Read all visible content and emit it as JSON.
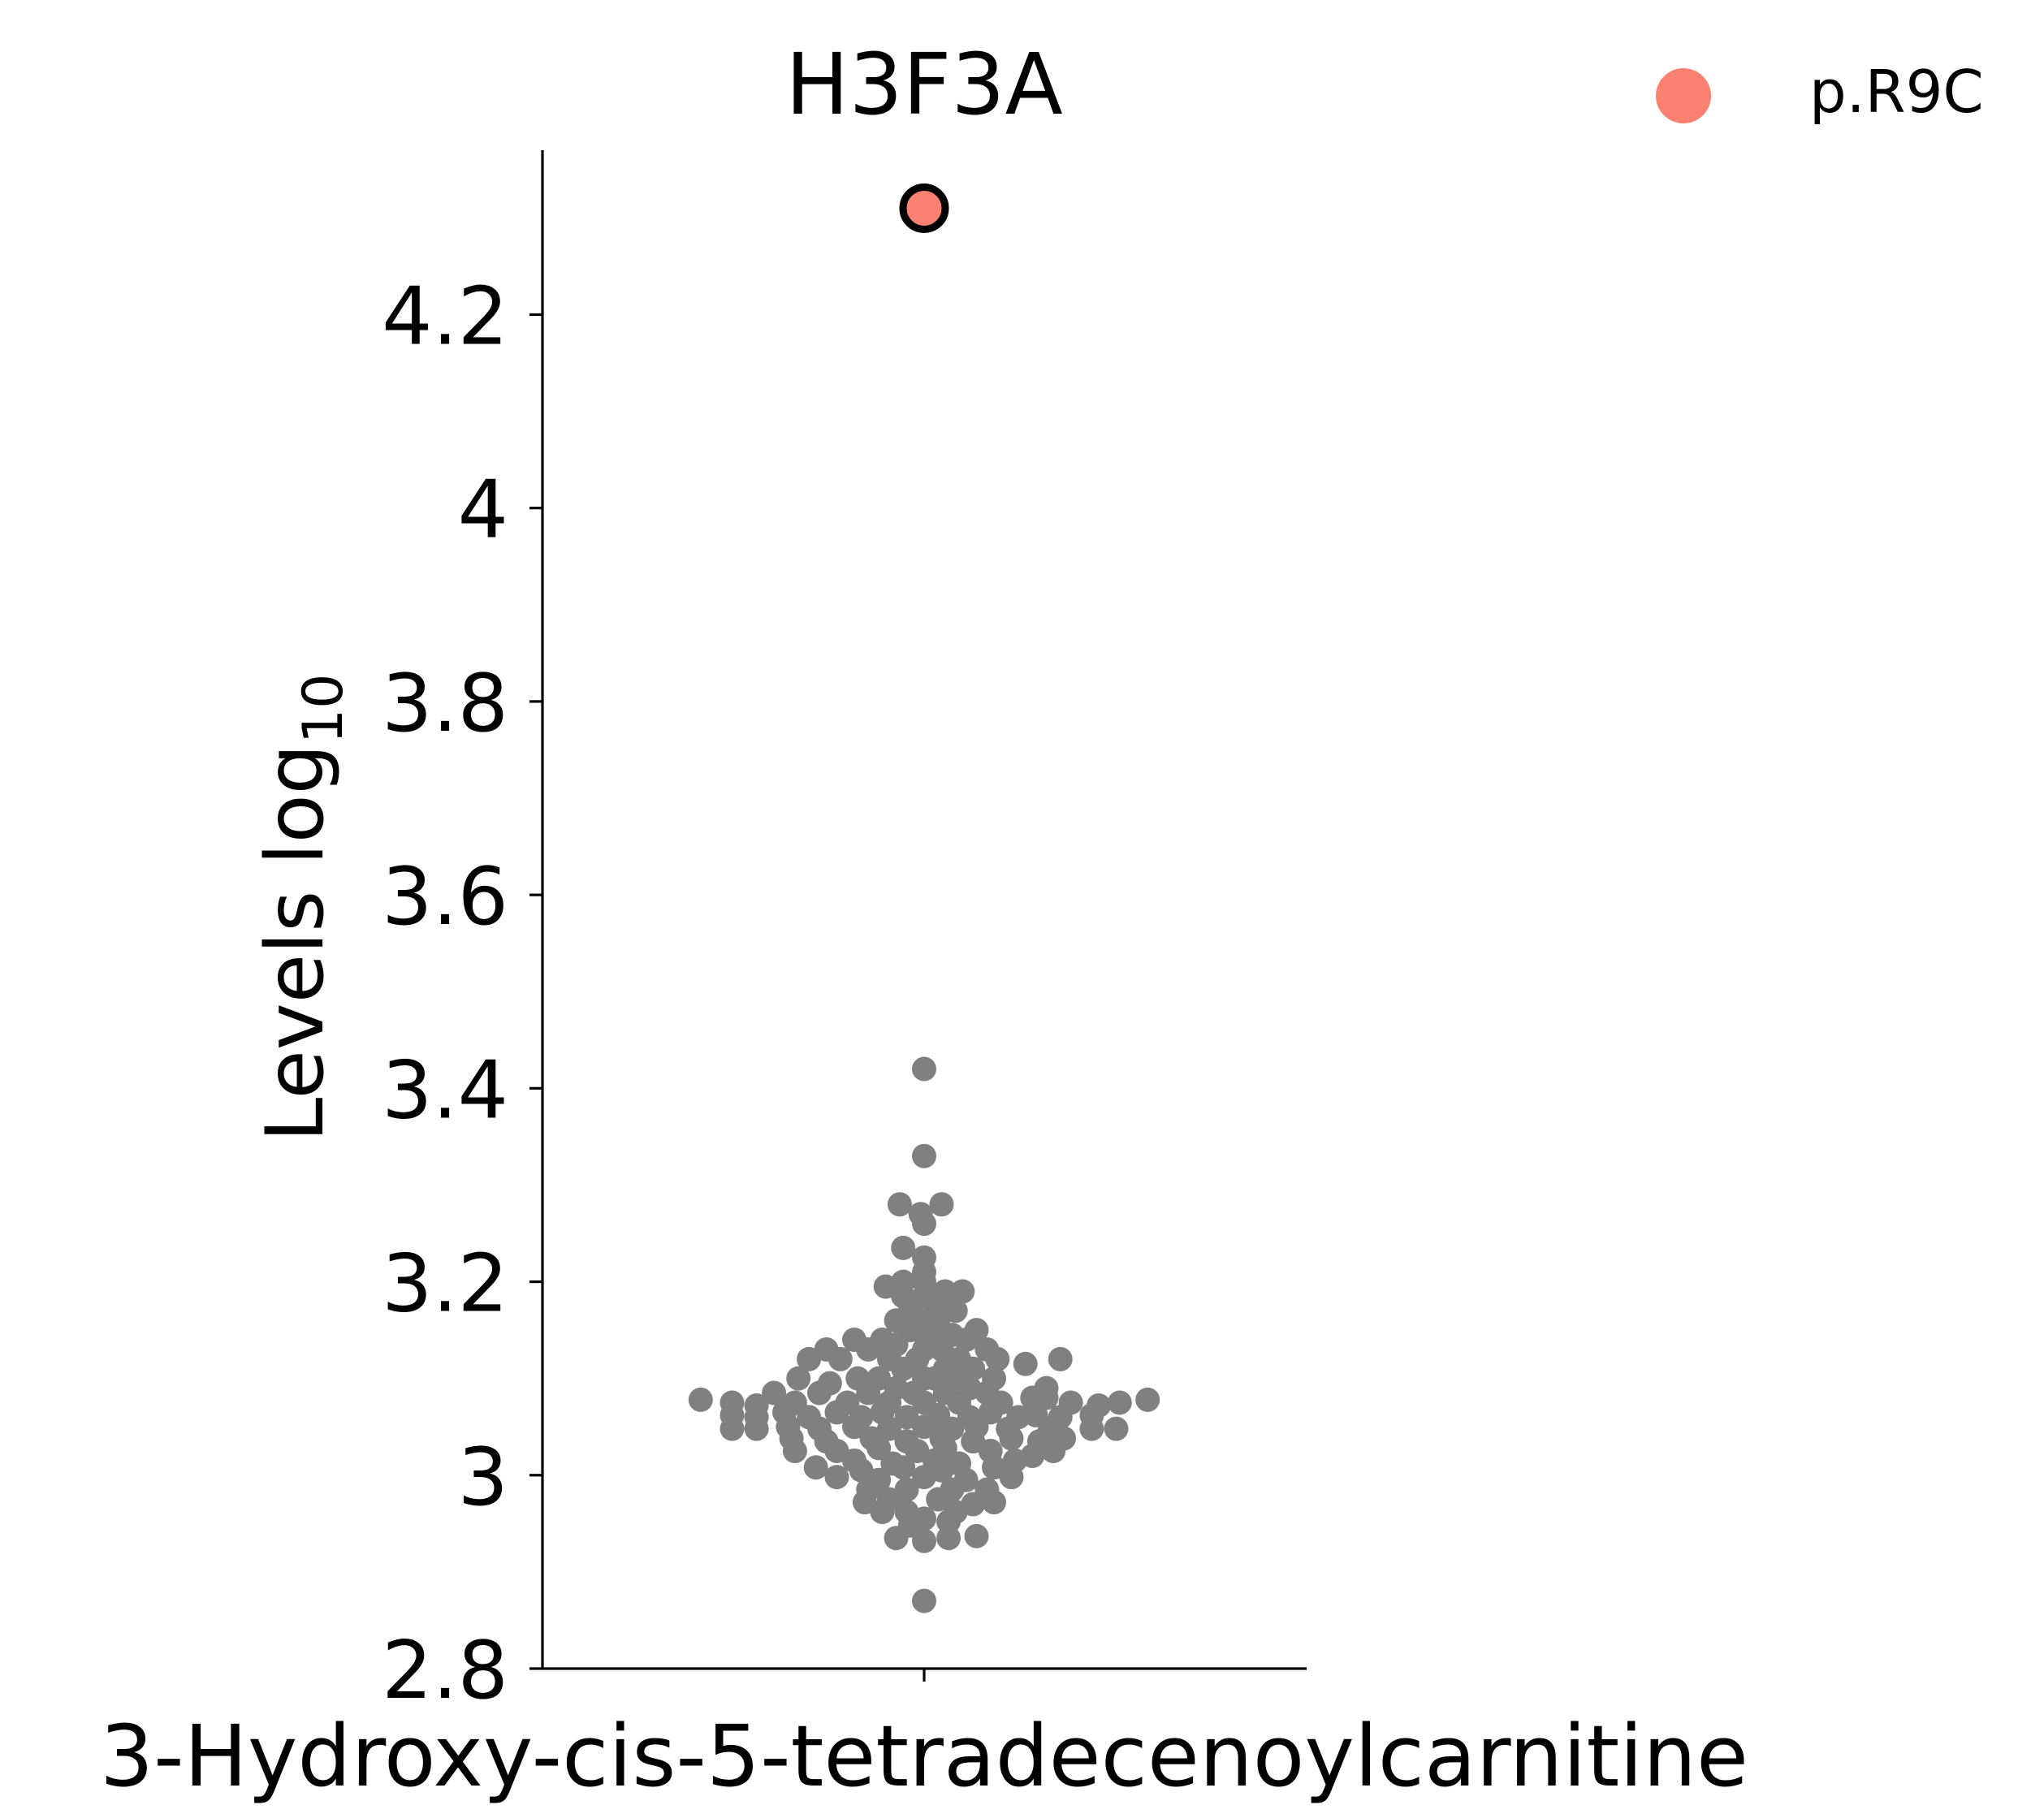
{
  "chart_data": {
    "type": "scatter",
    "title": "H3F3A",
    "xlabel": "",
    "ylabel": "Levels log",
    "ylabel_subscript": "10",
    "categories": [
      "3-Hydroxy-cis-5-tetradecenoylcarnitine"
    ],
    "yticks": [
      "2.8",
      "3",
      "3.2",
      "3.4",
      "3.6",
      "3.8",
      "4",
      "4.2"
    ],
    "ylim": [
      2.8,
      4.37
    ],
    "grid": false,
    "legend_position": "top-right",
    "legend": [
      {
        "label": "p.R9C",
        "color": "#fa8072"
      }
    ],
    "colors": {
      "background_points": "#808080",
      "highlight": "#fa8072",
      "highlight_edge": "#000000"
    },
    "series": [
      {
        "name": "p.R9C",
        "color": "#fa8072",
        "points": [
          {
            "x": 0,
            "y": 4.31
          }
        ]
      },
      {
        "color": "#808080",
        "points": [
          {
            "x": 0,
            "y": 3.42
          },
          {
            "x": 0,
            "y": 3.33
          },
          {
            "x": -0.07,
            "y": 3.28
          },
          {
            "x": -0.01,
            "y": 3.27
          },
          {
            "x": 0.05,
            "y": 3.28
          },
          {
            "x": 0,
            "y": 3.26
          },
          {
            "x": -0.06,
            "y": 3.235
          },
          {
            "x": 0,
            "y": 3.225
          },
          {
            "x": 0,
            "y": 3.21
          },
          {
            "x": -0.06,
            "y": 3.2
          },
          {
            "x": 0,
            "y": 3.2
          },
          {
            "x": -0.11,
            "y": 3.195
          },
          {
            "x": 0.11,
            "y": 3.19
          },
          {
            "x": 0.06,
            "y": 3.19
          },
          {
            "x": 0,
            "y": 3.185
          },
          {
            "x": -0.06,
            "y": 3.185
          },
          {
            "x": 0.03,
            "y": 3.18
          },
          {
            "x": 0.09,
            "y": 3.17
          },
          {
            "x": -0.04,
            "y": 3.17
          },
          {
            "x": 0,
            "y": 3.16
          },
          {
            "x": 0.04,
            "y": 3.16
          },
          {
            "x": -0.08,
            "y": 3.16
          },
          {
            "x": 0.15,
            "y": 3.15
          },
          {
            "x": -0.2,
            "y": 3.14
          },
          {
            "x": -0.12,
            "y": 3.14
          },
          {
            "x": -0.04,
            "y": 3.15
          },
          {
            "x": 0.02,
            "y": 3.14
          },
          {
            "x": 0.08,
            "y": 3.145
          },
          {
            "x": 0.12,
            "y": 3.14
          },
          {
            "x": -0.28,
            "y": 3.13
          },
          {
            "x": -0.16,
            "y": 3.13
          },
          {
            "x": -0.08,
            "y": 3.135
          },
          {
            "x": 0,
            "y": 3.13
          },
          {
            "x": 0.05,
            "y": 3.13
          },
          {
            "x": 0.18,
            "y": 3.13
          },
          {
            "x": -0.33,
            "y": 3.12
          },
          {
            "x": -0.24,
            "y": 3.12
          },
          {
            "x": -0.1,
            "y": 3.12
          },
          {
            "x": -0.02,
            "y": 3.12
          },
          {
            "x": 0.1,
            "y": 3.12
          },
          {
            "x": 0.21,
            "y": 3.12
          },
          {
            "x": 0.29,
            "y": 3.115
          },
          {
            "x": 0.39,
            "y": 3.12
          },
          {
            "x": -0.06,
            "y": 3.11
          },
          {
            "x": 0.06,
            "y": 3.11
          },
          {
            "x": 0.14,
            "y": 3.11
          },
          {
            "x": -0.36,
            "y": 3.1
          },
          {
            "x": -0.19,
            "y": 3.1
          },
          {
            "x": -0.13,
            "y": 3.1
          },
          {
            "x": 0,
            "y": 3.1
          },
          {
            "x": 0.03,
            "y": 3.1
          },
          {
            "x": 0.09,
            "y": 3.1
          },
          {
            "x": 0.2,
            "y": 3.1
          },
          {
            "x": -0.27,
            "y": 3.095
          },
          {
            "x": -0.08,
            "y": 3.09
          },
          {
            "x": 0.13,
            "y": 3.09
          },
          {
            "x": 0.35,
            "y": 3.09
          },
          {
            "x": -0.43,
            "y": 3.085
          },
          {
            "x": -0.3,
            "y": 3.085
          },
          {
            "x": -0.16,
            "y": 3.085
          },
          {
            "x": -0.03,
            "y": 3.085
          },
          {
            "x": 0.06,
            "y": 3.085
          },
          {
            "x": 0.18,
            "y": 3.085
          },
          {
            "x": 0.31,
            "y": 3.08
          },
          {
            "x": 0.35,
            "y": 3.08
          },
          {
            "x": -0.64,
            "y": 3.078
          },
          {
            "x": -0.55,
            "y": 3.075
          },
          {
            "x": -0.48,
            "y": 3.072
          },
          {
            "x": -0.37,
            "y": 3.075
          },
          {
            "x": -0.22,
            "y": 3.075
          },
          {
            "x": -0.1,
            "y": 3.075
          },
          {
            "x": 0,
            "y": 3.075
          },
          {
            "x": 0.1,
            "y": 3.075
          },
          {
            "x": 0.22,
            "y": 3.075
          },
          {
            "x": 0.42,
            "y": 3.075
          },
          {
            "x": 0.5,
            "y": 3.072
          },
          {
            "x": 0.56,
            "y": 3.075
          },
          {
            "x": 0.64,
            "y": 3.078
          },
          {
            "x": -0.55,
            "y": 3.062
          },
          {
            "x": -0.48,
            "y": 3.06
          },
          {
            "x": -0.4,
            "y": 3.065
          },
          {
            "x": -0.33,
            "y": 3.06
          },
          {
            "x": -0.25,
            "y": 3.065
          },
          {
            "x": -0.18,
            "y": 3.06
          },
          {
            "x": -0.12,
            "y": 3.065
          },
          {
            "x": -0.05,
            "y": 3.06
          },
          {
            "x": 0.04,
            "y": 3.062
          },
          {
            "x": 0.13,
            "y": 3.06
          },
          {
            "x": 0.19,
            "y": 3.065
          },
          {
            "x": 0.27,
            "y": 3.06
          },
          {
            "x": 0.32,
            "y": 3.062
          },
          {
            "x": 0.39,
            "y": 3.06
          },
          {
            "x": 0.48,
            "y": 3.062
          },
          {
            "x": -0.55,
            "y": 3.048
          },
          {
            "x": -0.48,
            "y": 3.048
          },
          {
            "x": -0.39,
            "y": 3.05
          },
          {
            "x": -0.3,
            "y": 3.048
          },
          {
            "x": -0.2,
            "y": 3.05
          },
          {
            "x": -0.1,
            "y": 3.048
          },
          {
            "x": 0,
            "y": 3.05
          },
          {
            "x": 0.08,
            "y": 3.048
          },
          {
            "x": 0.15,
            "y": 3.05
          },
          {
            "x": 0.24,
            "y": 3.048
          },
          {
            "x": 0.36,
            "y": 3.048
          },
          {
            "x": 0.48,
            "y": 3.048
          },
          {
            "x": 0.55,
            "y": 3.048
          },
          {
            "x": -0.38,
            "y": 3.038
          },
          {
            "x": -0.28,
            "y": 3.035
          },
          {
            "x": -0.15,
            "y": 3.038
          },
          {
            "x": -0.05,
            "y": 3.035
          },
          {
            "x": 0.05,
            "y": 3.038
          },
          {
            "x": 0.14,
            "y": 3.035
          },
          {
            "x": 0.25,
            "y": 3.038
          },
          {
            "x": 0.33,
            "y": 3.035
          },
          {
            "x": 0.4,
            "y": 3.038
          },
          {
            "x": -0.37,
            "y": 3.025
          },
          {
            "x": -0.25,
            "y": 3.025
          },
          {
            "x": -0.13,
            "y": 3.028
          },
          {
            "x": -0.02,
            "y": 3.025
          },
          {
            "x": 0.06,
            "y": 3.028
          },
          {
            "x": 0.19,
            "y": 3.025
          },
          {
            "x": 0.37,
            "y": 3.025
          },
          {
            "x": -0.2,
            "y": 3.015
          },
          {
            "x": -0.09,
            "y": 3.012
          },
          {
            "x": 0.03,
            "y": 3.015
          },
          {
            "x": 0.1,
            "y": 3.012
          },
          {
            "x": 0.26,
            "y": 3.015
          },
          {
            "x": 0.31,
            "y": 3.02
          },
          {
            "x": -0.31,
            "y": 3.008
          },
          {
            "x": -0.18,
            "y": 3.005
          },
          {
            "x": -0.06,
            "y": 3.008
          },
          {
            "x": 0.05,
            "y": 3.005
          },
          {
            "x": 0.2,
            "y": 3.008
          },
          {
            "x": -0.25,
            "y": 2.998
          },
          {
            "x": -0.13,
            "y": 2.995
          },
          {
            "x": 0,
            "y": 2.998
          },
          {
            "x": 0.12,
            "y": 2.995
          },
          {
            "x": 0.25,
            "y": 2.998
          },
          {
            "x": -0.16,
            "y": 2.985
          },
          {
            "x": -0.05,
            "y": 2.985
          },
          {
            "x": 0.08,
            "y": 2.985
          },
          {
            "x": 0.18,
            "y": 2.985
          },
          {
            "x": -0.1,
            "y": 2.975
          },
          {
            "x": 0.04,
            "y": 2.975
          },
          {
            "x": 0.14,
            "y": 2.97
          },
          {
            "x": -0.17,
            "y": 2.972
          },
          {
            "x": 0.2,
            "y": 2.972
          },
          {
            "x": -0.05,
            "y": 2.962
          },
          {
            "x": 0.09,
            "y": 2.962
          },
          {
            "x": -0.12,
            "y": 2.962
          },
          {
            "x": 0,
            "y": 2.955
          },
          {
            "x": 0.07,
            "y": 2.952
          },
          {
            "x": -0.04,
            "y": 2.948
          },
          {
            "x": -0.08,
            "y": 2.935
          },
          {
            "x": 0,
            "y": 2.932
          },
          {
            "x": 0.07,
            "y": 2.935
          },
          {
            "x": 0.15,
            "y": 2.937
          },
          {
            "x": 0,
            "y": 2.87
          }
        ]
      }
    ]
  }
}
